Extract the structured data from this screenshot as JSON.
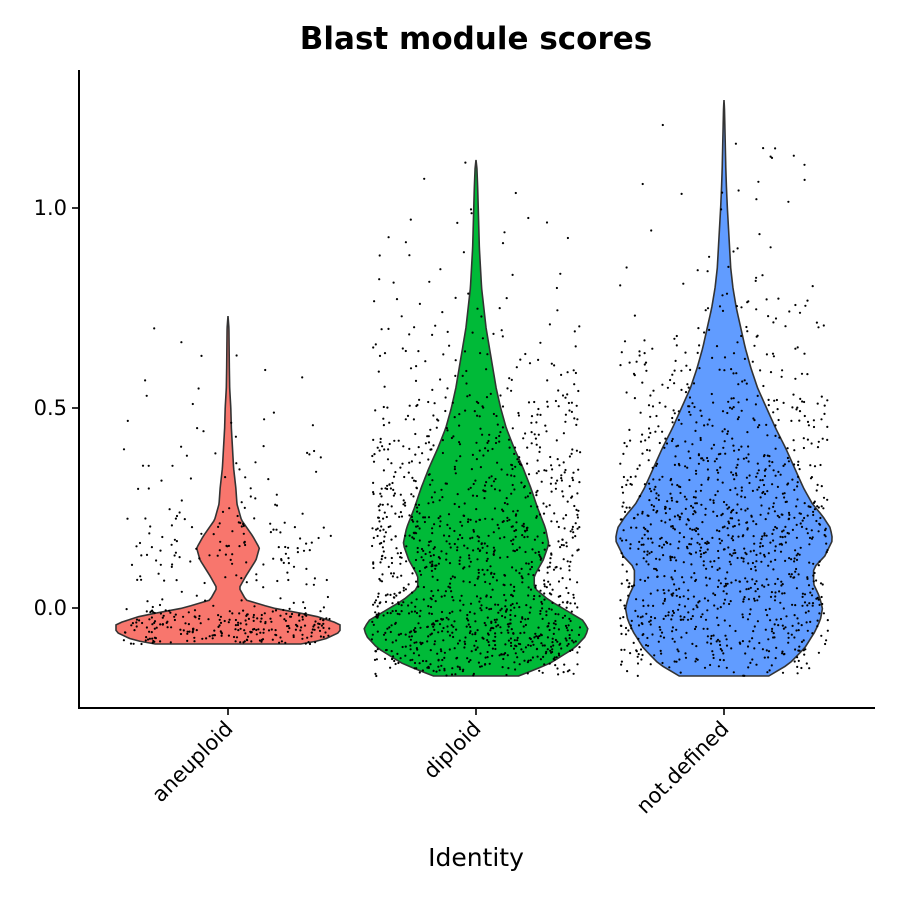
{
  "chart_data": {
    "type": "violin",
    "title": "Blast module scores",
    "xlabel": "Identity",
    "ylabel": "",
    "ylim": [
      -0.25,
      1.35
    ],
    "yticks": [
      0.0,
      0.5,
      1.0
    ],
    "ytick_labels": [
      "0.0",
      "0.5",
      "1.0"
    ],
    "grid": false,
    "legend": "none",
    "groups": [
      {
        "name": "aneuploid",
        "color": "#F8766D",
        "min": -0.09,
        "max": 0.73,
        "n_points": 420,
        "density_profile": [
          [
            -0.09,
            0.65
          ],
          [
            -0.08,
            0.85
          ],
          [
            -0.06,
            1.0
          ],
          [
            -0.04,
            1.0
          ],
          [
            -0.02,
            0.78
          ],
          [
            0.0,
            0.4
          ],
          [
            0.02,
            0.16
          ],
          [
            0.05,
            0.1
          ],
          [
            0.08,
            0.16
          ],
          [
            0.12,
            0.25
          ],
          [
            0.15,
            0.28
          ],
          [
            0.18,
            0.22
          ],
          [
            0.22,
            0.12
          ],
          [
            0.26,
            0.08
          ],
          [
            0.3,
            0.07
          ],
          [
            0.35,
            0.05
          ],
          [
            0.4,
            0.04
          ],
          [
            0.45,
            0.03
          ],
          [
            0.5,
            0.025
          ],
          [
            0.55,
            0.015
          ],
          [
            0.6,
            0.012
          ],
          [
            0.65,
            0.01
          ],
          [
            0.7,
            0.008
          ],
          [
            0.73,
            0.0
          ]
        ]
      },
      {
        "name": "diploid",
        "color": "#00BA38",
        "min": -0.17,
        "max": 1.12,
        "n_points": 1300,
        "density_profile": [
          [
            -0.17,
            0.38
          ],
          [
            -0.14,
            0.65
          ],
          [
            -0.1,
            0.88
          ],
          [
            -0.07,
            0.98
          ],
          [
            -0.05,
            1.0
          ],
          [
            -0.03,
            0.95
          ],
          [
            -0.01,
            0.83
          ],
          [
            0.02,
            0.65
          ],
          [
            0.05,
            0.52
          ],
          [
            0.08,
            0.52
          ],
          [
            0.12,
            0.6
          ],
          [
            0.16,
            0.65
          ],
          [
            0.2,
            0.62
          ],
          [
            0.25,
            0.55
          ],
          [
            0.3,
            0.49
          ],
          [
            0.35,
            0.42
          ],
          [
            0.4,
            0.34
          ],
          [
            0.45,
            0.27
          ],
          [
            0.5,
            0.22
          ],
          [
            0.55,
            0.18
          ],
          [
            0.6,
            0.15
          ],
          [
            0.65,
            0.12
          ],
          [
            0.7,
            0.09
          ],
          [
            0.75,
            0.07
          ],
          [
            0.8,
            0.05
          ],
          [
            0.85,
            0.04
          ],
          [
            0.9,
            0.03
          ],
          [
            0.95,
            0.025
          ],
          [
            1.0,
            0.02
          ],
          [
            1.05,
            0.015
          ],
          [
            1.1,
            0.008
          ],
          [
            1.12,
            0.0
          ]
        ]
      },
      {
        "name": "not.defined",
        "color": "#619CFF",
        "min": -0.17,
        "max": 1.27,
        "n_points": 1200,
        "density_profile": [
          [
            -0.17,
            0.4
          ],
          [
            -0.14,
            0.58
          ],
          [
            -0.1,
            0.72
          ],
          [
            -0.06,
            0.81
          ],
          [
            -0.03,
            0.86
          ],
          [
            0.0,
            0.88
          ],
          [
            0.03,
            0.85
          ],
          [
            0.06,
            0.8
          ],
          [
            0.1,
            0.8
          ],
          [
            0.13,
            0.9
          ],
          [
            0.17,
            0.97
          ],
          [
            0.2,
            0.95
          ],
          [
            0.23,
            0.88
          ],
          [
            0.26,
            0.79
          ],
          [
            0.3,
            0.71
          ],
          [
            0.35,
            0.63
          ],
          [
            0.4,
            0.55
          ],
          [
            0.45,
            0.46
          ],
          [
            0.5,
            0.38
          ],
          [
            0.55,
            0.3
          ],
          [
            0.6,
            0.24
          ],
          [
            0.65,
            0.19
          ],
          [
            0.7,
            0.15
          ],
          [
            0.75,
            0.11
          ],
          [
            0.8,
            0.08
          ],
          [
            0.85,
            0.06
          ],
          [
            0.9,
            0.05
          ],
          [
            0.95,
            0.04
          ],
          [
            1.0,
            0.03
          ],
          [
            1.05,
            0.022
          ],
          [
            1.1,
            0.016
          ],
          [
            1.15,
            0.012
          ],
          [
            1.2,
            0.008
          ],
          [
            1.25,
            0.004
          ],
          [
            1.27,
            0.0
          ]
        ]
      }
    ]
  }
}
